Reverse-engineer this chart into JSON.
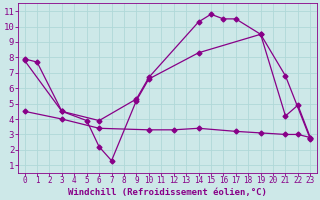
{
  "xlabel": "Windchill (Refroidissement éolien,°C)",
  "bg_color": "#cde8e8",
  "line_color": "#880088",
  "grid_color": "#b0d8d8",
  "xlim": [
    -0.5,
    23.5
  ],
  "ylim": [
    0.5,
    11.5
  ],
  "xticks": [
    0,
    1,
    2,
    3,
    4,
    5,
    6,
    7,
    8,
    9,
    10,
    11,
    12,
    13,
    14,
    15,
    16,
    17,
    18,
    19,
    20,
    21,
    22,
    23
  ],
  "yticks": [
    1,
    2,
    3,
    4,
    5,
    6,
    7,
    8,
    9,
    10,
    11
  ],
  "line1_x": [
    0,
    1,
    3,
    6,
    9,
    10,
    14,
    15,
    16,
    17,
    19,
    21,
    22,
    23
  ],
  "line1_y": [
    7.9,
    7.7,
    4.5,
    3.9,
    5.3,
    6.7,
    10.3,
    10.8,
    10.5,
    10.5,
    9.5,
    4.2,
    4.9,
    2.8
  ],
  "line2_x": [
    0,
    3,
    5,
    6,
    7,
    9,
    10,
    14,
    19,
    21,
    23
  ],
  "line2_y": [
    7.8,
    4.5,
    3.9,
    2.2,
    1.3,
    5.2,
    6.6,
    8.3,
    9.5,
    6.8,
    2.7
  ],
  "line3_x": [
    0,
    3,
    6,
    10,
    12,
    14,
    17,
    19,
    21,
    22,
    23
  ],
  "line3_y": [
    4.5,
    4.0,
    3.4,
    3.3,
    3.3,
    3.4,
    3.2,
    3.1,
    3.0,
    3.0,
    2.8
  ],
  "xlabel_fontsize": 6.5,
  "ytick_fontsize": 6.5,
  "xtick_fontsize": 5.5,
  "marker_size": 2.5
}
